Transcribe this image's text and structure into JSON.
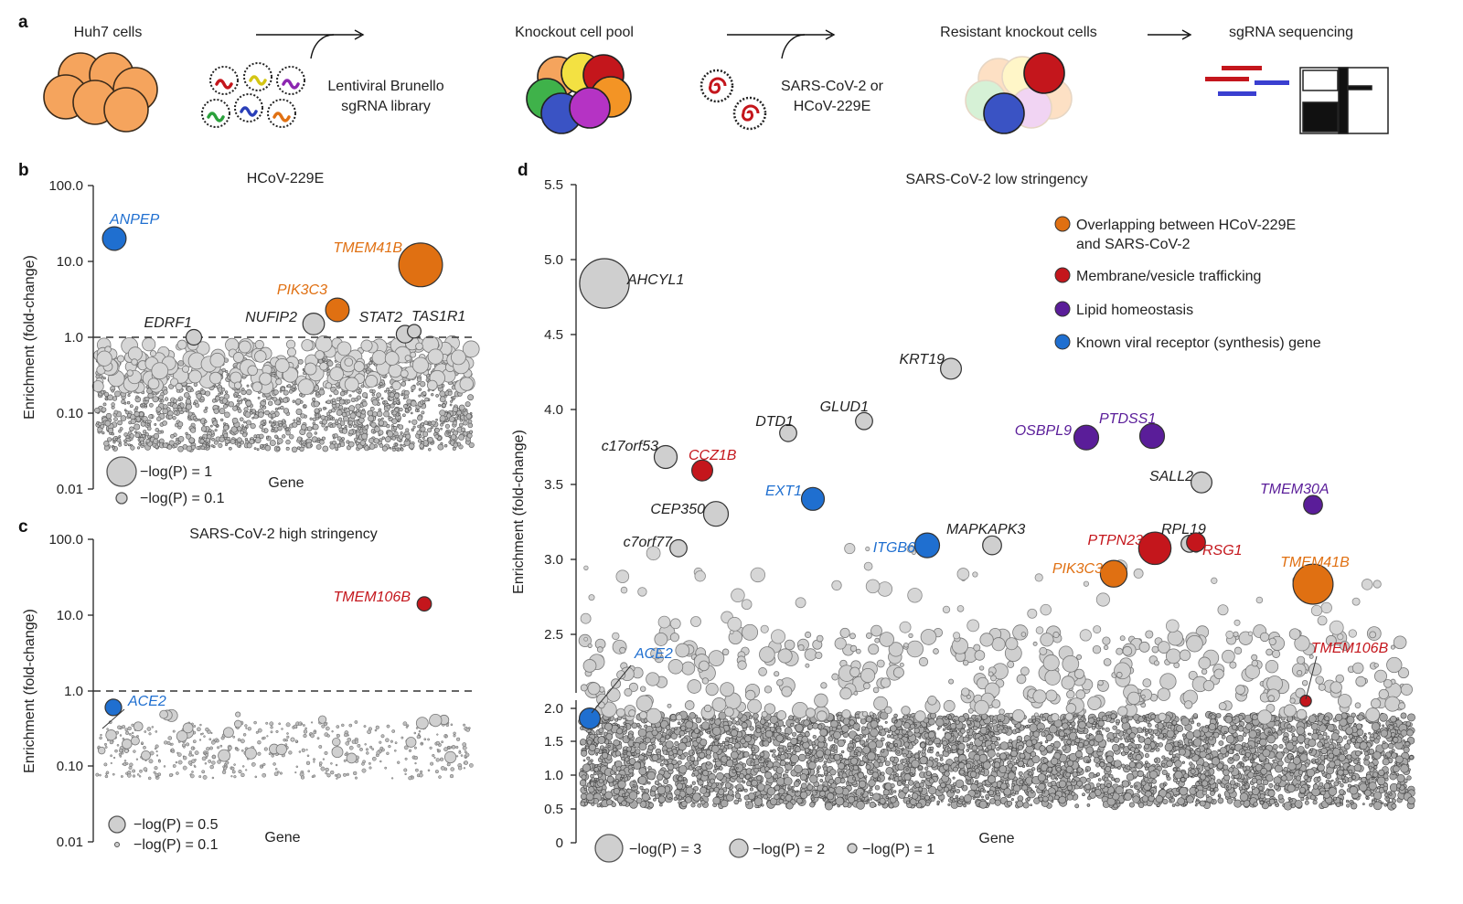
{
  "colors": {
    "orange": "#e07012",
    "red": "#c4161c",
    "purple": "#5a1d99",
    "blue": "#1f6fd0",
    "gray_fill": "#cfcfcf",
    "gray_stroke": "#555555",
    "dark": "#222222"
  },
  "panel_a": {
    "letter": "a",
    "steps": [
      "Huh7 cells",
      "Knockout cell pool",
      "Resistant knockout cells",
      "sgRNA sequencing"
    ],
    "library_label": [
      "Lentiviral Brunello",
      "sgRNA library"
    ],
    "virus_label": [
      "SARS-CoV-2 or",
      "HCoV-229E"
    ]
  },
  "panel_b": {
    "letter": "b",
    "title": "HCoV-229E",
    "xlabel": "Gene",
    "ylabel": "Enrichment (fold-change)",
    "ticks": [
      "100.0",
      "10.0",
      "1.0",
      "0.10",
      "0.01"
    ],
    "size_legend": [
      "−log(P) = 1",
      "−log(P) = 0.1"
    ]
  },
  "panel_c": {
    "letter": "c",
    "title": "SARS-CoV-2 high stringency",
    "xlabel": "Gene",
    "ylabel": "Enrichment (fold-change)",
    "ticks": [
      "100.0",
      "10.0",
      "1.0",
      "0.10",
      "0.01"
    ],
    "size_legend": [
      "−log(P) = 0.5",
      "−log(P) = 0.1"
    ]
  },
  "panel_d": {
    "letter": "d",
    "title": "SARS-CoV-2 low stringency",
    "xlabel": "Gene",
    "ylabel": "Enrichment (fold-change)",
    "ticks": [
      "5.5",
      "5.0",
      "4.5",
      "4.0",
      "3.5",
      "3.0",
      "2.5",
      "2.0",
      "1.5",
      "1.0",
      "0.5",
      "0"
    ],
    "legend": [
      {
        "label": "Overlapping between HCoV-229E",
        "label2": "and SARS-CoV-2",
        "color": "orange"
      },
      {
        "label": "Membrane/vesicle trafficking",
        "color": "red"
      },
      {
        "label": "Lipid homeostasis",
        "color": "purple"
      },
      {
        "label": "Known viral receptor (synthesis) gene",
        "color": "blue"
      }
    ],
    "size_legend": [
      "−log(P) = 3",
      "−log(P) = 2",
      "−log(P) = 1"
    ]
  },
  "chart_data": [
    {
      "type": "scatter",
      "title": "HCoV-229E",
      "xlabel": "Gene",
      "ylabel": "Enrichment (fold-change)",
      "yscale": "log",
      "ylim": [
        0.01,
        100
      ],
      "threshold": 1.0,
      "labeled_points": [
        {
          "gene": "ANPEP",
          "y": 20,
          "neglogP": 0.9,
          "color": "blue"
        },
        {
          "gene": "TMEM41B",
          "y": 9,
          "neglogP": 1.9,
          "color": "orange"
        },
        {
          "gene": "PIK3C3",
          "y": 2.3,
          "neglogP": 0.9,
          "color": "orange"
        },
        {
          "gene": "NUFIP2",
          "y": 1.5,
          "neglogP": 0.8,
          "color": "gray"
        },
        {
          "gene": "EDRF1",
          "y": 1.0,
          "neglogP": 0.5,
          "color": "gray"
        },
        {
          "gene": "STAT2",
          "y": 1.1,
          "neglogP": 0.6,
          "color": "gray"
        },
        {
          "gene": "TAS1R1",
          "y": 1.2,
          "neglogP": 0.4,
          "color": "gray"
        }
      ]
    },
    {
      "type": "scatter",
      "title": "SARS-CoV-2 high stringency",
      "xlabel": "Gene",
      "ylabel": "Enrichment (fold-change)",
      "yscale": "log",
      "ylim": [
        0.01,
        100
      ],
      "threshold": 1.0,
      "labeled_points": [
        {
          "gene": "TMEM106B",
          "y": 14,
          "neglogP": 0.4,
          "color": "red"
        },
        {
          "gene": "ACE2",
          "y": 0.6,
          "neglogP": 0.5,
          "color": "blue"
        }
      ]
    },
    {
      "type": "scatter",
      "title": "SARS-CoV-2 low stringency",
      "xlabel": "Gene",
      "ylabel": "Enrichment (fold-change)",
      "ylim": [
        0,
        5.5
      ],
      "labeled_points": [
        {
          "gene": "AHCYL1",
          "y": 4.84,
          "neglogP": 2.3,
          "color": "gray"
        },
        {
          "gene": "KRT19",
          "y": 4.27,
          "neglogP": 0.8,
          "color": "gray"
        },
        {
          "gene": "GLUD1",
          "y": 3.92,
          "neglogP": 0.6,
          "color": "gray"
        },
        {
          "gene": "DTD1",
          "y": 3.84,
          "neglogP": 0.6,
          "color": "gray"
        },
        {
          "gene": "c17orf53",
          "y": 3.68,
          "neglogP": 0.9,
          "color": "gray"
        },
        {
          "gene": "CCZ1B",
          "y": 3.59,
          "neglogP": 0.8,
          "color": "red"
        },
        {
          "gene": "OSBPL9",
          "y": 3.81,
          "neglogP": 1.0,
          "color": "purple"
        },
        {
          "gene": "PTDSS1",
          "y": 3.82,
          "neglogP": 1.0,
          "color": "purple"
        },
        {
          "gene": "SALL2",
          "y": 3.51,
          "neglogP": 0.8,
          "color": "gray"
        },
        {
          "gene": "TMEM30A",
          "y": 3.36,
          "neglogP": 0.7,
          "color": "purple"
        },
        {
          "gene": "EXT1",
          "y": 3.4,
          "neglogP": 0.9,
          "color": "blue"
        },
        {
          "gene": "CEP350",
          "y": 3.3,
          "neglogP": 1.0,
          "color": "gray"
        },
        {
          "gene": "c7orf77",
          "y": 3.07,
          "neglogP": 0.6,
          "color": "gray"
        },
        {
          "gene": "ITGB6",
          "y": 3.09,
          "neglogP": 1.0,
          "color": "blue"
        },
        {
          "gene": "MAPKAPK3",
          "y": 3.09,
          "neglogP": 0.7,
          "color": "gray"
        },
        {
          "gene": "PTPN23",
          "y": 3.07,
          "neglogP": 1.4,
          "color": "red"
        },
        {
          "gene": "RPL19",
          "y": 3.1,
          "neglogP": 0.6,
          "color": "gray"
        },
        {
          "gene": "RSG1",
          "y": 3.11,
          "neglogP": 0.7,
          "color": "red"
        },
        {
          "gene": "PIK3C3",
          "y": 2.9,
          "neglogP": 1.1,
          "color": "orange"
        },
        {
          "gene": "TMEM41B",
          "y": 2.83,
          "neglogP": 1.8,
          "color": "orange"
        },
        {
          "gene": "ACE2",
          "y": 1.85,
          "neglogP": 0.8,
          "color": "blue"
        },
        {
          "gene": "TMEM106B",
          "y": 2.05,
          "neglogP": 0.3,
          "color": "red"
        }
      ]
    }
  ]
}
